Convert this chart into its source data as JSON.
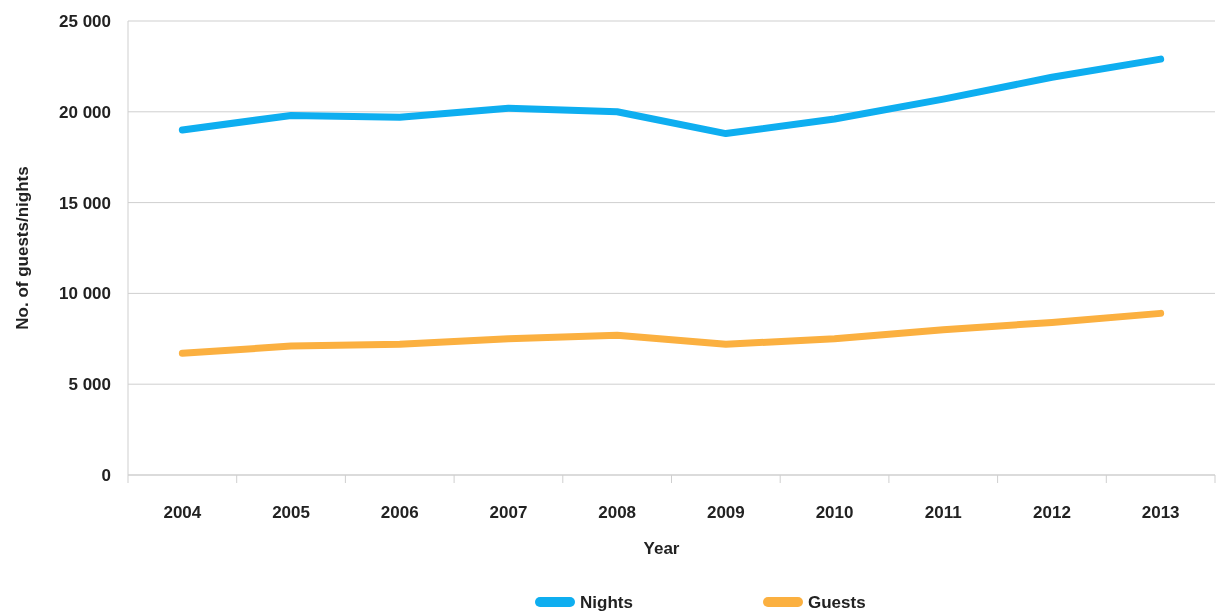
{
  "chart_data": {
    "type": "line",
    "xlabel": "Year",
    "ylabel": "No. of guests/nights",
    "categories": [
      "2004",
      "2005",
      "2006",
      "2007",
      "2008",
      "2009",
      "2010",
      "2011",
      "2012",
      "2013"
    ],
    "series": [
      {
        "name": "Nights",
        "color": "#0eaef0",
        "values": [
          19000,
          19800,
          19700,
          20200,
          20000,
          18800,
          19600,
          20700,
          21900,
          22900
        ]
      },
      {
        "name": "Guests",
        "color": "#fbb040",
        "values": [
          6700,
          7100,
          7200,
          7500,
          7700,
          7200,
          7500,
          8000,
          8400,
          8900
        ]
      }
    ],
    "ylim": [
      0,
      25000
    ],
    "yticks": [
      {
        "value": 0,
        "label": "0"
      },
      {
        "value": 5000,
        "label": "5 000"
      },
      {
        "value": 10000,
        "label": "10 000"
      },
      {
        "value": 15000,
        "label": "15 000"
      },
      {
        "value": 20000,
        "label": "20 000"
      },
      {
        "value": 25000,
        "label": "25 000"
      }
    ],
    "grid": "y",
    "legend": "bottom",
    "line_style": "solid"
  }
}
